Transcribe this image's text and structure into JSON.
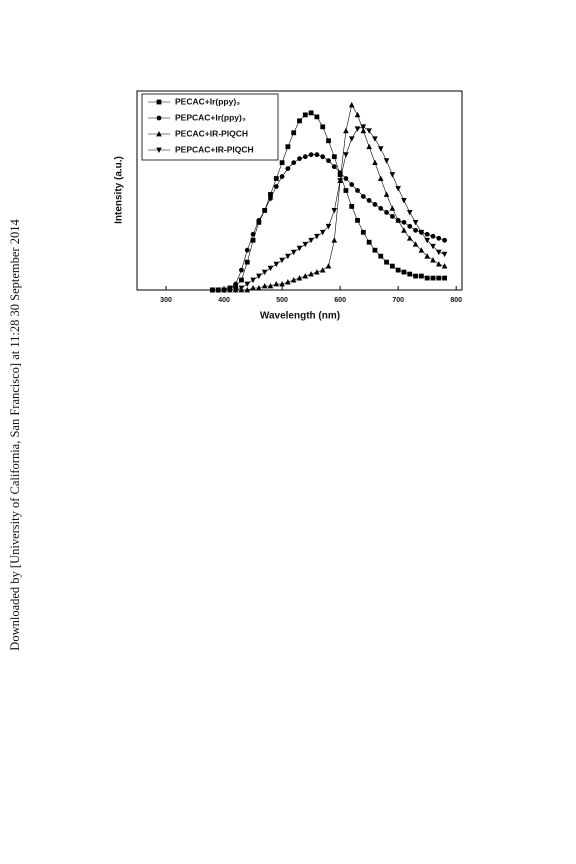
{
  "side_text": "Downloaded by [University of California, San Francisco] at 11:28 30 September 2014",
  "chart_data": {
    "type": "line",
    "x_label": "Wavelength (nm)",
    "y_label": "Intensity (a.u.)",
    "x": [
      380,
      390,
      400,
      410,
      420,
      430,
      440,
      450,
      460,
      470,
      480,
      490,
      500,
      510,
      520,
      530,
      540,
      550,
      560,
      570,
      580,
      590,
      600,
      610,
      620,
      630,
      640,
      650,
      660,
      670,
      680,
      690,
      700,
      710,
      720,
      730,
      740,
      750,
      760,
      770,
      780
    ],
    "xlim": [
      250,
      810
    ],
    "xticks": [
      300,
      400,
      500,
      600,
      700,
      800
    ],
    "ylim": [
      0,
      100
    ],
    "legend": "upper-left",
    "series": [
      {
        "name": "PECAC+Ir(ppy)₃",
        "color": "#000000",
        "marker": "square",
        "values": [
          0,
          0,
          0,
          1,
          2,
          5,
          14,
          25,
          34,
          40,
          48,
          56,
          64,
          72,
          79,
          85,
          88,
          89,
          87,
          82,
          75,
          67,
          58,
          50,
          42,
          35,
          29,
          24,
          20,
          17,
          14,
          12,
          10,
          9,
          8,
          7,
          7,
          6,
          6,
          6,
          6
        ]
      },
      {
        "name": "PEPCAC+Ir(ppy)₃",
        "color": "#000000",
        "marker": "circle",
        "values": [
          0,
          0,
          0,
          1,
          3,
          10,
          20,
          28,
          35,
          40,
          46,
          52,
          57,
          61,
          64,
          66,
          67,
          68,
          68,
          67,
          65,
          62,
          59,
          56,
          53,
          50,
          47,
          45,
          43,
          41,
          39,
          37,
          35,
          34,
          32,
          30,
          29,
          28,
          27,
          26,
          25
        ]
      },
      {
        "name": "PECAC+IR-PIQCH",
        "color": "#000000",
        "marker": "triangle-up",
        "values": [
          0,
          0,
          0,
          0,
          0,
          0,
          0,
          1,
          1,
          2,
          2,
          3,
          3,
          4,
          5,
          6,
          7,
          8,
          9,
          10,
          12,
          25,
          55,
          80,
          93,
          88,
          80,
          72,
          64,
          56,
          48,
          41,
          35,
          30,
          26,
          23,
          20,
          17,
          15,
          13,
          12
        ]
      },
      {
        "name": "PEPCAC+IR-PIQCH",
        "color": "#000000",
        "marker": "triangle-down",
        "values": [
          0,
          0,
          0,
          0,
          0,
          1,
          3,
          5,
          7,
          9,
          11,
          13,
          15,
          17,
          19,
          21,
          23,
          25,
          27,
          29,
          32,
          40,
          55,
          68,
          76,
          81,
          82,
          80,
          76,
          71,
          65,
          58,
          51,
          45,
          39,
          34,
          29,
          25,
          22,
          19,
          18
        ]
      }
    ]
  }
}
